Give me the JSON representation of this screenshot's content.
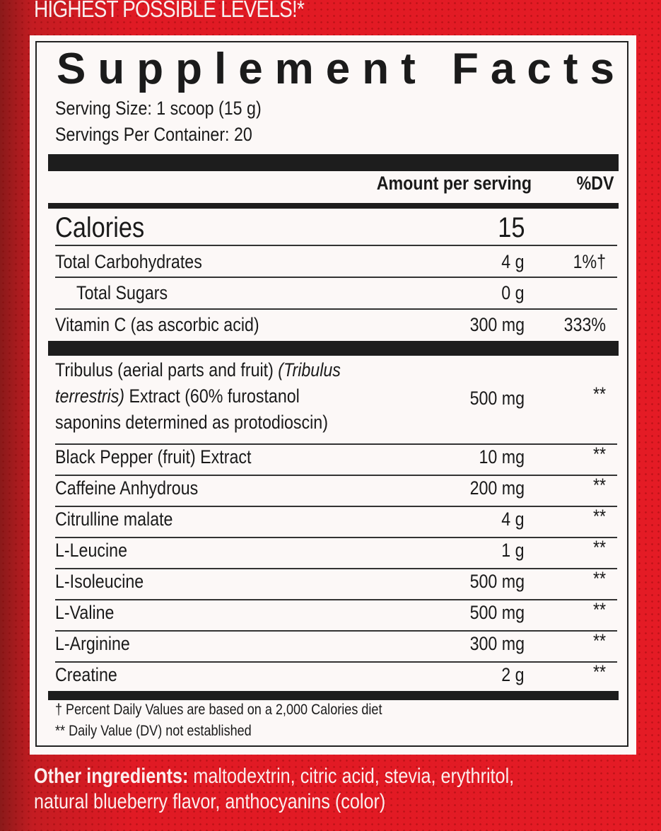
{
  "tagline": "HIGHEST POSSIBLE LEVELS!*",
  "title": "Supplement Facts",
  "serving_size": "Serving Size: 1 scoop (15 g)",
  "servings_per_container": "Servings Per Container: 20",
  "header": {
    "amount": "Amount per serving",
    "dv": "%DV"
  },
  "calories": {
    "label": "Calories",
    "amount": "15"
  },
  "nutrients": [
    {
      "name": "Total Carbohydrates",
      "amount": "4 g",
      "dv": "1%†"
    },
    {
      "name": "Total Sugars",
      "amount": "0 g",
      "dv": ""
    },
    {
      "name": "Vitamin C (as ascorbic acid)",
      "amount": "300 mg",
      "dv": "333%"
    }
  ],
  "tribulus": {
    "line1a": "Tribulus (aerial parts and fruit) ",
    "line1b": "(Tribulus",
    "line2a": "terrestris)",
    "line2b": " Extract (60% furostanol",
    "line3": "saponins determined as protodioscin)",
    "amount": "500 mg",
    "dv": "**"
  },
  "ingredients": [
    {
      "name": "Black Pepper (fruit) Extract",
      "amount": "10 mg",
      "dv": "**"
    },
    {
      "name": "Caffeine Anhydrous",
      "amount": "200 mg",
      "dv": "**"
    },
    {
      "name": "Citrulline malate",
      "amount": "4 g",
      "dv": "**"
    },
    {
      "name": "L-Leucine",
      "amount": "1 g",
      "dv": "**"
    },
    {
      "name": "L-Isoleucine",
      "amount": "500 mg",
      "dv": "**"
    },
    {
      "name": "L-Valine",
      "amount": "500 mg",
      "dv": "**"
    },
    {
      "name": "L-Arginine",
      "amount": "300 mg",
      "dv": "**"
    },
    {
      "name": "Creatine",
      "amount": "2 g",
      "dv": "**"
    }
  ],
  "footnotes": [
    "† Percent Daily Values are based on a 2,000 Calories diet",
    "** Daily Value (DV) not established"
  ],
  "other_ingredients": {
    "label": "Other ingredients:",
    "line1": " maltodextrin, citric acid, stevia, erythritol,",
    "line2": "natural blueberry flavor, anthocyanins (color)"
  }
}
